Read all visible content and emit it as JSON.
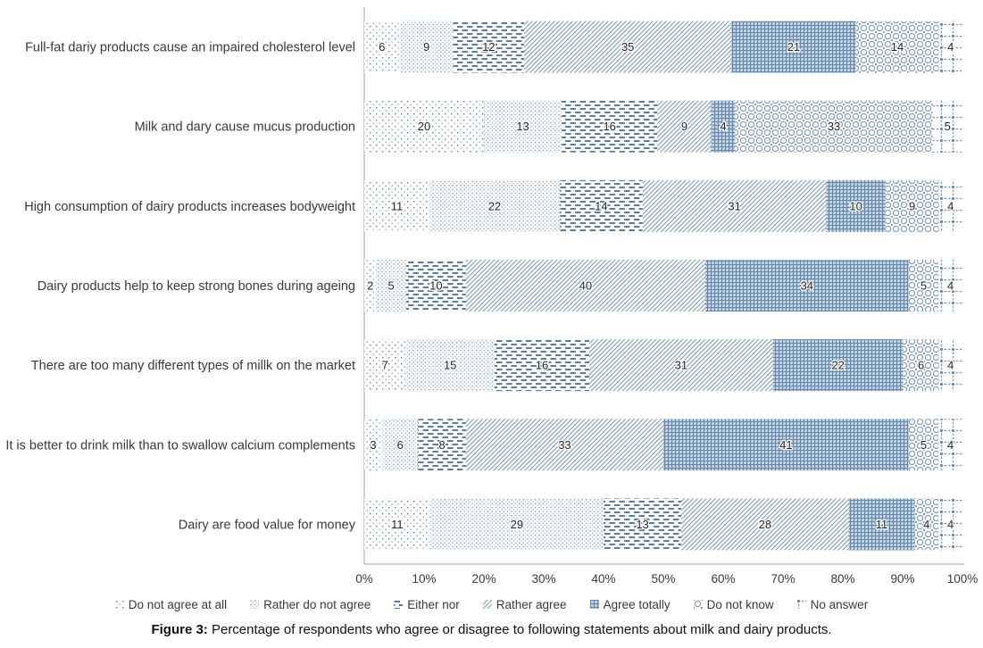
{
  "chart_data": {
    "type": "bar",
    "orientation": "horizontal",
    "stacked": true,
    "unit": "%",
    "title": "",
    "xlabel": "",
    "ylabel": "",
    "xlim": [
      0,
      100
    ],
    "grid": false,
    "legend_position": "bottom",
    "x_ticks": [
      "0%",
      "10%",
      "20%",
      "30%",
      "40%",
      "50%",
      "60%",
      "70%",
      "80%",
      "90%",
      "100%"
    ],
    "categories": [
      "Full-fat dariy products cause an impaired cholesterol level",
      "Milk and dary cause mucus production",
      "High consumption of dairy products increases bodyweight",
      "Dairy products help to keep strong bones during ageing",
      "There are too many different types of millk on the market",
      "It is better to drink milk than to swallow calcium complements",
      "Dairy are food value for money"
    ],
    "series": [
      {
        "name": "Do not agree at all",
        "pattern": "sparse-dots",
        "values": [
          6,
          20,
          11,
          2,
          7,
          3,
          11
        ]
      },
      {
        "name": "Rather do not agree",
        "pattern": "dense-dots",
        "values": [
          9,
          13,
          22,
          5,
          15,
          6,
          29
        ]
      },
      {
        "name": "Either nor",
        "pattern": "horizontal-dashes",
        "values": [
          12,
          16,
          14,
          10,
          16,
          8,
          13
        ]
      },
      {
        "name": "Rather agree",
        "pattern": "diagonal-lines",
        "values": [
          35,
          9,
          31,
          40,
          31,
          33,
          28
        ]
      },
      {
        "name": "Agree totally",
        "pattern": "dense-weave",
        "values": [
          21,
          4,
          10,
          34,
          22,
          41,
          11
        ]
      },
      {
        "name": "Do not know",
        "pattern": "circle-lattice",
        "values": [
          14,
          33,
          9,
          5,
          6,
          5,
          4
        ]
      },
      {
        "name": "No answer",
        "pattern": "dashed-grid",
        "values": [
          4,
          5,
          4,
          4,
          4,
          4,
          4
        ]
      }
    ],
    "colors": {
      "pattern_stroke": "#7d9ab9",
      "pattern_stroke_dark": "#587ba2",
      "weave_fill": "#b7c8d8",
      "axis_line": "#a6a6a6",
      "label_text": "#3a3a3a",
      "value_text": "#262626"
    }
  },
  "caption": {
    "label": "Figure 3:",
    "text": "Percentage of respondents who agree or disagree to following statements about milk and dairy products."
  }
}
